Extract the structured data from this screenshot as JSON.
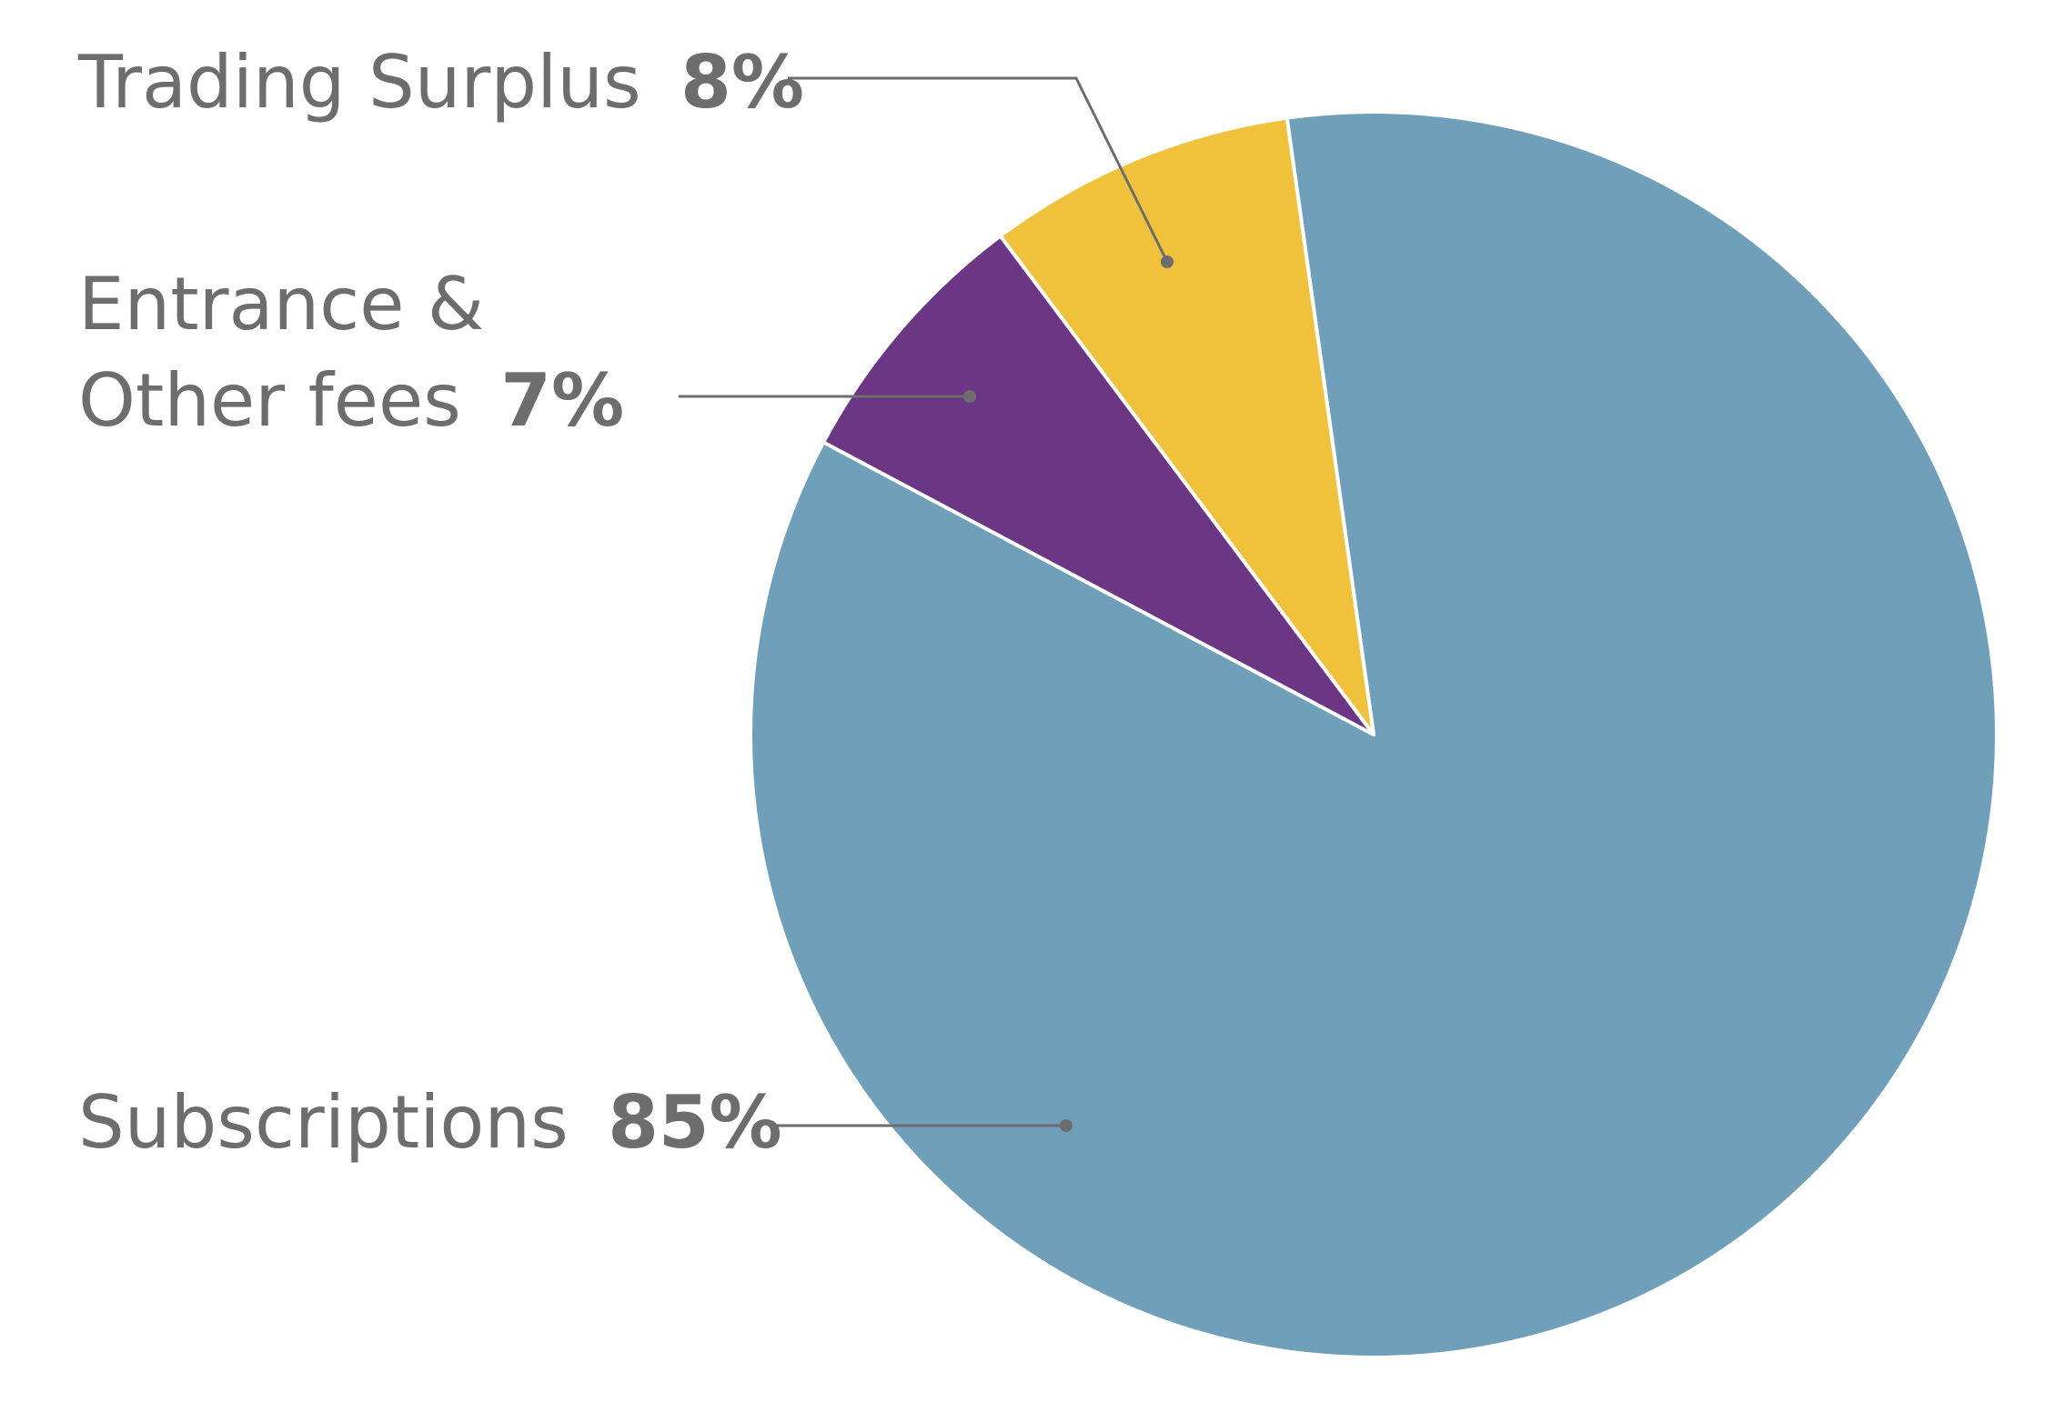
{
  "chart_data": {
    "type": "pie",
    "start_direction": "clockwise from the upper edge of the largest slice",
    "slices": [
      {
        "label": "Subscriptions",
        "value": 85,
        "value_label": "85%",
        "color": "#6f9fb9"
      },
      {
        "label": "Entrance & Other fees",
        "value": 7,
        "value_label": "7%",
        "color": "#6b3683"
      },
      {
        "label": "Trading Surplus",
        "value": 8,
        "value_label": "8%",
        "color": "#f0c23b"
      }
    ],
    "legend": "none",
    "labels": "outside with leader lines",
    "label_color": "#6d6d6d"
  }
}
